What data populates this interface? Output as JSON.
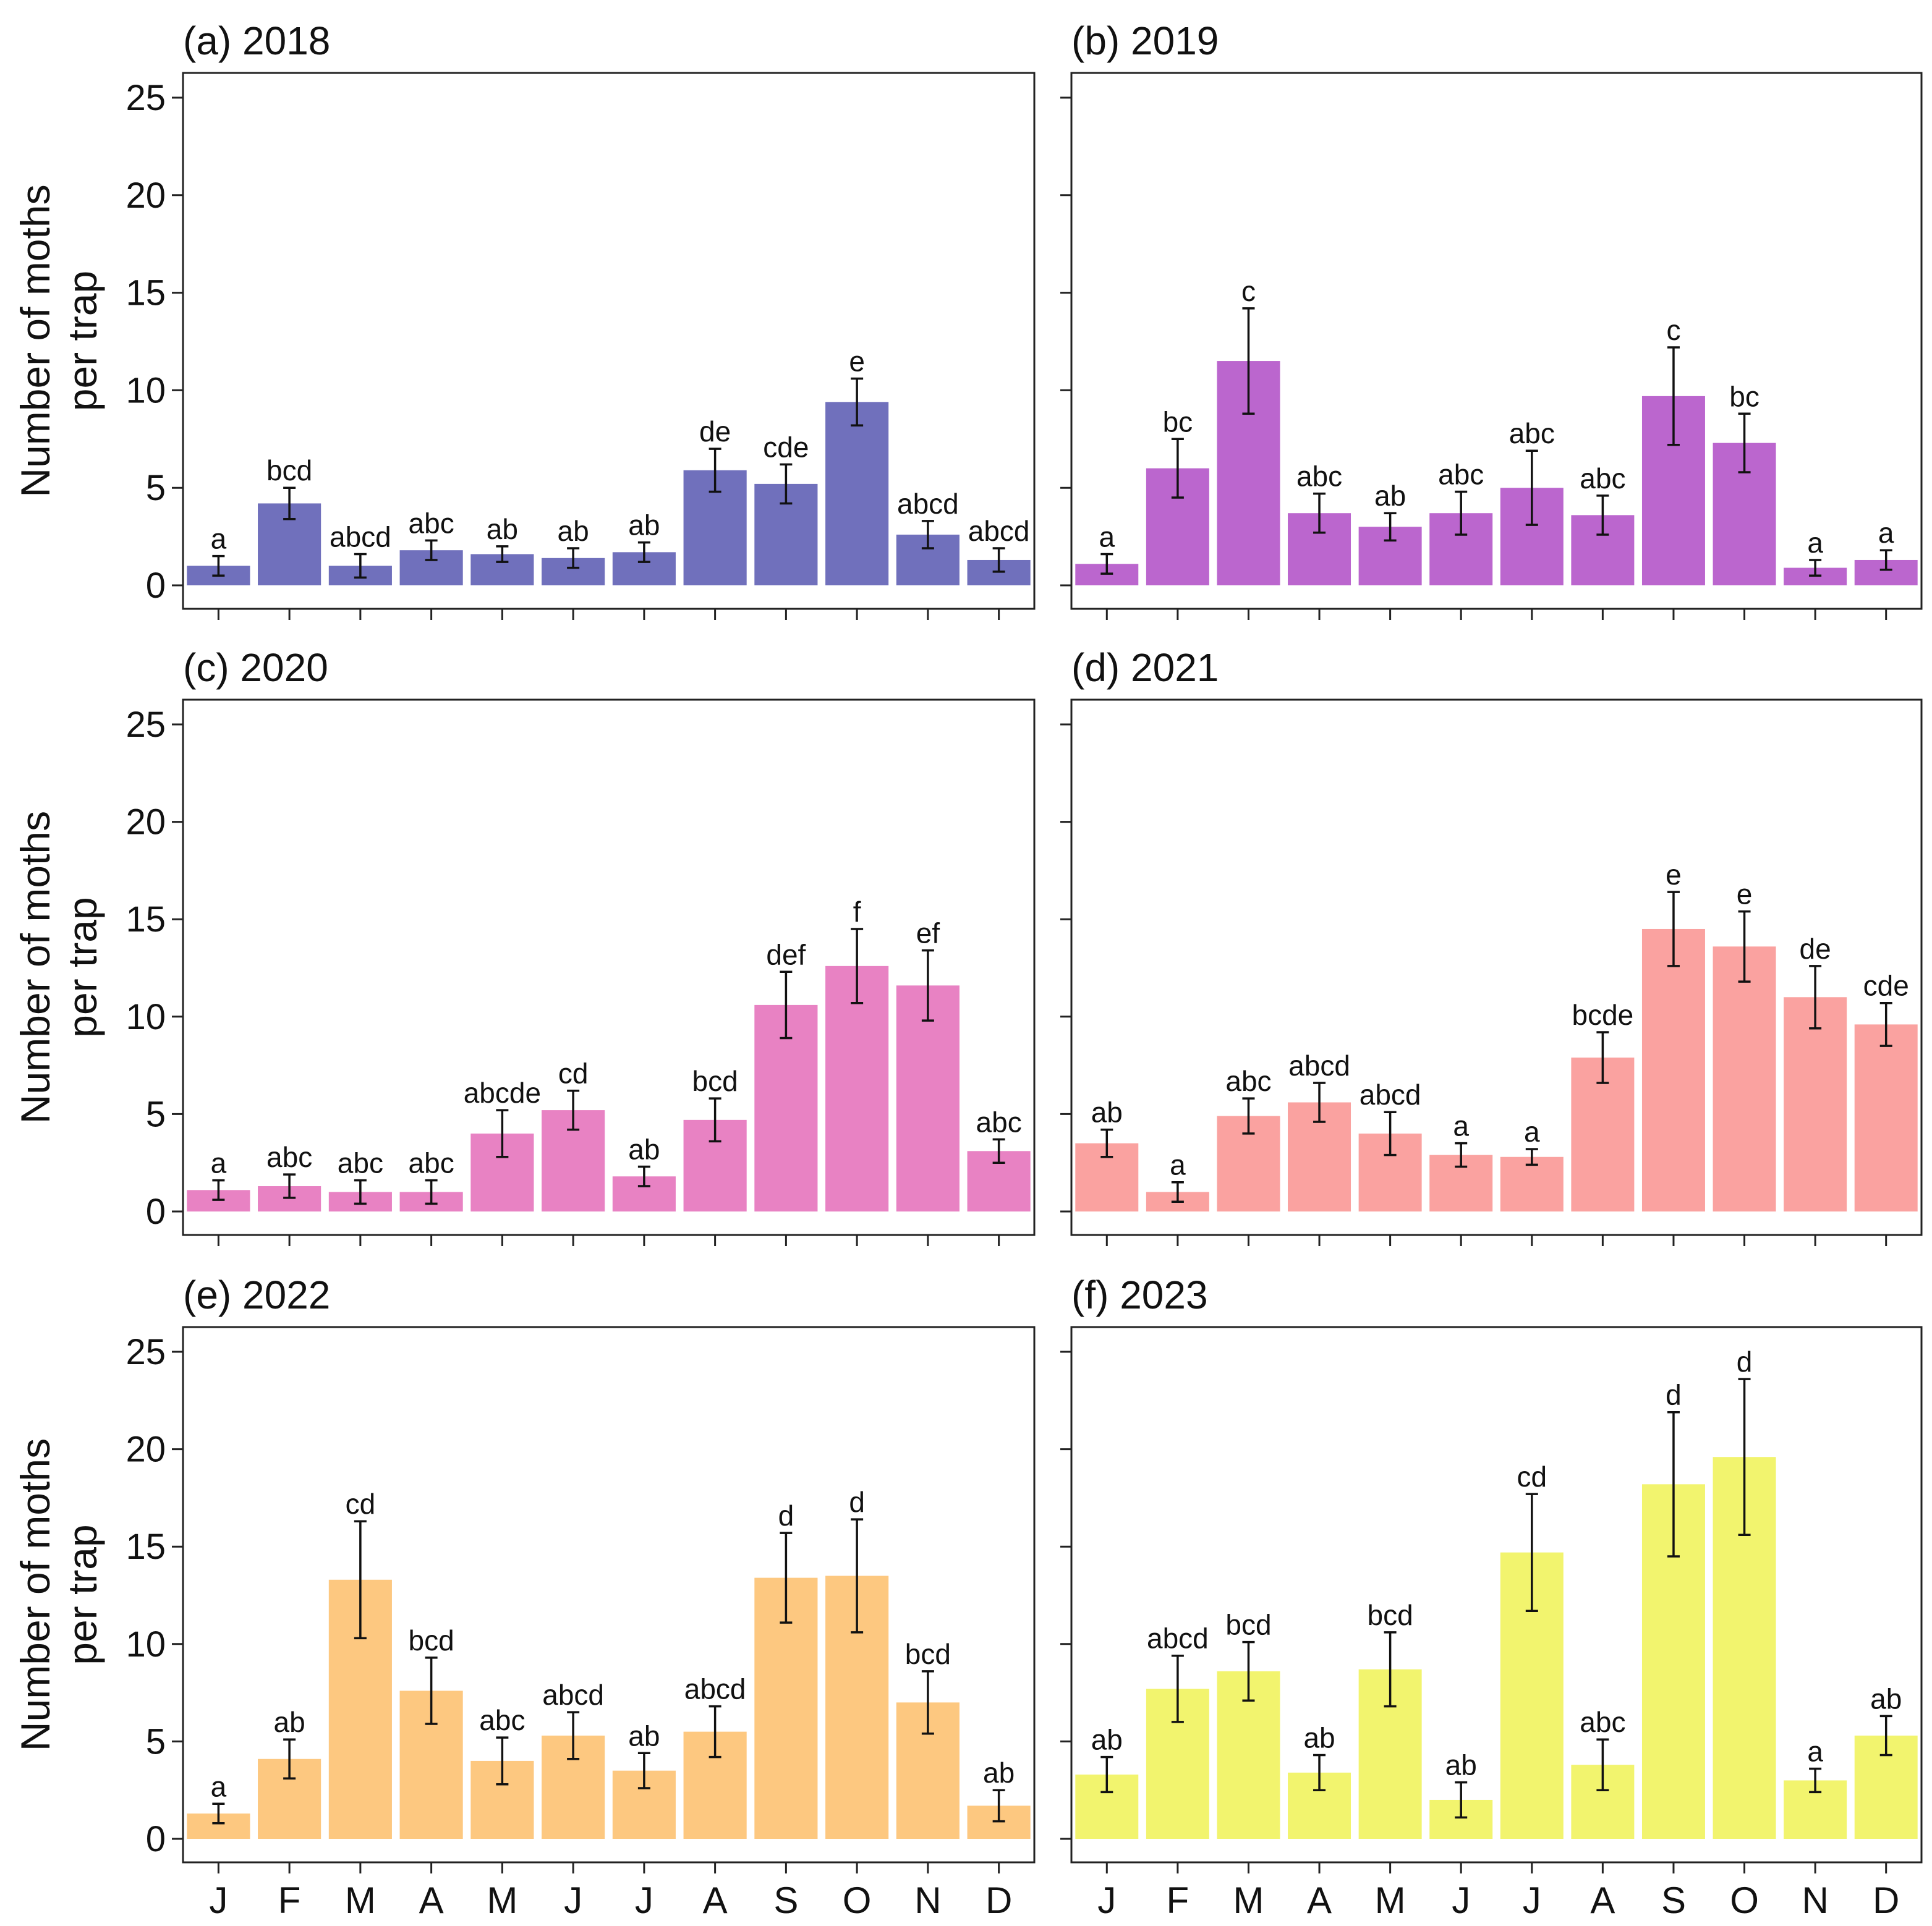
{
  "chart_data": [
    {
      "type": "bar",
      "title": "(a) 2018",
      "categories": [
        "J",
        "F",
        "M",
        "A",
        "M",
        "J",
        "J",
        "A",
        "S",
        "O",
        "N",
        "D"
      ],
      "values": [
        1.0,
        4.2,
        1.0,
        1.8,
        1.6,
        1.4,
        1.7,
        5.9,
        5.2,
        9.4,
        2.6,
        1.3
      ],
      "errors": [
        0.5,
        0.8,
        0.6,
        0.5,
        0.4,
        0.5,
        0.5,
        1.1,
        1.0,
        1.2,
        0.7,
        0.6
      ],
      "letters": [
        "a",
        "bcd",
        "abcd",
        "abc",
        "ab",
        "ab",
        "ab",
        "de",
        "cde",
        "e",
        "abcd",
        "abcd"
      ],
      "color": "#7070BC",
      "ylabel": "Number of moths\nper trap",
      "ylim": [
        0,
        25
      ],
      "yticks": [
        0,
        5,
        10,
        15,
        20,
        25
      ],
      "show_ytick_labels": true,
      "show_xtick_labels": false
    },
    {
      "type": "bar",
      "title": "(b) 2019",
      "categories": [
        "J",
        "F",
        "M",
        "A",
        "M",
        "J",
        "J",
        "A",
        "S",
        "O",
        "N",
        "D"
      ],
      "values": [
        1.1,
        6.0,
        11.5,
        3.7,
        3.0,
        3.7,
        5.0,
        3.6,
        9.7,
        7.3,
        0.9,
        1.3
      ],
      "errors": [
        0.5,
        1.5,
        2.7,
        1.0,
        0.7,
        1.1,
        1.9,
        1.0,
        2.5,
        1.5,
        0.4,
        0.5
      ],
      "letters": [
        "a",
        "bc",
        "c",
        "abc",
        "ab",
        "abc",
        "abc",
        "abc",
        "c",
        "bc",
        "a",
        "a"
      ],
      "color": "#BB66CE",
      "ylabel": "",
      "ylim": [
        0,
        25
      ],
      "yticks": [
        0,
        5,
        10,
        15,
        20,
        25
      ],
      "show_ytick_labels": false,
      "show_xtick_labels": false
    },
    {
      "type": "bar",
      "title": "(c) 2020",
      "categories": [
        "J",
        "F",
        "M",
        "A",
        "M",
        "J",
        "J",
        "A",
        "S",
        "O",
        "N",
        "D"
      ],
      "values": [
        1.1,
        1.3,
        1.0,
        1.0,
        4.0,
        5.2,
        1.8,
        4.7,
        10.6,
        12.6,
        11.6,
        3.1
      ],
      "errors": [
        0.5,
        0.6,
        0.6,
        0.6,
        1.2,
        1.0,
        0.5,
        1.1,
        1.7,
        1.9,
        1.8,
        0.6
      ],
      "letters": [
        "a",
        "abc",
        "abc",
        "abc",
        "abcde",
        "cd",
        "ab",
        "bcd",
        "def",
        "f",
        "ef",
        "abc"
      ],
      "color": "#E882C3",
      "ylabel": "Number of moths\nper trap",
      "ylim": [
        0,
        25
      ],
      "yticks": [
        0,
        5,
        10,
        15,
        20,
        25
      ],
      "show_ytick_labels": true,
      "show_xtick_labels": false
    },
    {
      "type": "bar",
      "title": "(d) 2021",
      "categories": [
        "J",
        "F",
        "M",
        "A",
        "M",
        "J",
        "J",
        "A",
        "S",
        "O",
        "N",
        "D"
      ],
      "values": [
        3.5,
        1.0,
        4.9,
        5.6,
        4.0,
        2.9,
        2.8,
        7.9,
        14.5,
        13.6,
        11.0,
        9.6
      ],
      "errors": [
        0.7,
        0.5,
        0.9,
        1.0,
        1.1,
        0.6,
        0.4,
        1.3,
        1.9,
        1.8,
        1.6,
        1.1
      ],
      "letters": [
        "ab",
        "a",
        "abc",
        "abcd",
        "abcd",
        "a",
        "a",
        "bcde",
        "e",
        "e",
        "de",
        "cde"
      ],
      "color": "#FAA2A0",
      "ylabel": "",
      "ylim": [
        0,
        25
      ],
      "yticks": [
        0,
        5,
        10,
        15,
        20,
        25
      ],
      "show_ytick_labels": false,
      "show_xtick_labels": false
    },
    {
      "type": "bar",
      "title": "(e) 2022",
      "categories": [
        "J",
        "F",
        "M",
        "A",
        "M",
        "J",
        "J",
        "A",
        "S",
        "O",
        "N",
        "D"
      ],
      "values": [
        1.3,
        4.1,
        13.3,
        7.6,
        4.0,
        5.3,
        3.5,
        5.5,
        13.4,
        13.5,
        7.0,
        1.7
      ],
      "errors": [
        0.5,
        1.0,
        3.0,
        1.7,
        1.2,
        1.2,
        0.9,
        1.3,
        2.3,
        2.9,
        1.6,
        0.8
      ],
      "letters": [
        "a",
        "ab",
        "cd",
        "bcd",
        "abc",
        "abcd",
        "ab",
        "abcd",
        "d",
        "d",
        "bcd",
        "ab"
      ],
      "color": "#FDC880",
      "ylabel": "Number of moths\nper trap",
      "ylim": [
        0,
        25
      ],
      "yticks": [
        0,
        5,
        10,
        15,
        20,
        25
      ],
      "show_ytick_labels": true,
      "show_xtick_labels": true
    },
    {
      "type": "bar",
      "title": "(f) 2023",
      "categories": [
        "J",
        "F",
        "M",
        "A",
        "M",
        "J",
        "J",
        "A",
        "S",
        "O",
        "N",
        "D"
      ],
      "values": [
        3.3,
        7.7,
        8.6,
        3.4,
        8.7,
        2.0,
        14.7,
        3.8,
        18.2,
        19.6,
        3.0,
        5.3
      ],
      "errors": [
        0.9,
        1.7,
        1.5,
        0.9,
        1.9,
        0.9,
        3.0,
        1.3,
        3.7,
        4.0,
        0.6,
        1.0
      ],
      "letters": [
        "ab",
        "abcd",
        "bcd",
        "ab",
        "bcd",
        "ab",
        "cd",
        "abc",
        "d",
        "d",
        "a",
        "ab"
      ],
      "color": "#F2F46E",
      "ylabel": "",
      "ylim": [
        0,
        25
      ],
      "yticks": [
        0,
        5,
        10,
        15,
        20,
        25
      ],
      "show_ytick_labels": false,
      "show_xtick_labels": true
    }
  ]
}
